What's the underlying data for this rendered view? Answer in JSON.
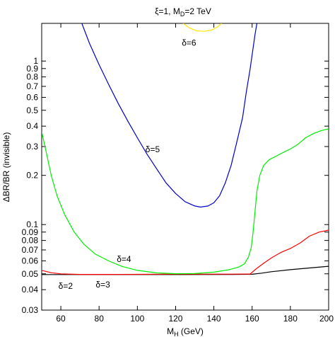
{
  "chart_data": {
    "type": "line",
    "title": "ξ=1, M_D=2 TeV",
    "title_parts": {
      "main": "ξ=1, M",
      "sub": "D",
      "tail": "=2 TeV"
    },
    "xlabel_parts": {
      "main": "M",
      "sub": "H",
      "tail": " (GeV)"
    },
    "ylabel": "ΔBR/BR (invisible)",
    "xlim": [
      50,
      200
    ],
    "ylim": [
      0.03,
      1.7
    ],
    "yscale": "log",
    "grid": false,
    "x_ticks": [
      60,
      80,
      100,
      120,
      140,
      160,
      180,
      200
    ],
    "y_ticks": [
      0.03,
      0.04,
      0.05,
      0.06,
      0.07,
      0.08,
      0.09,
      0.1,
      0.2,
      0.3,
      0.4,
      0.5,
      0.6,
      0.7,
      0.8,
      0.9,
      1
    ],
    "colors": {
      "d2": "#000000",
      "d3": "#ff0000",
      "d4": "#00ee00",
      "d5": "#0000cc",
      "d6": "#ffe600"
    },
    "series": [
      {
        "key": "d2",
        "points": [
          [
            50,
            0.0495
          ],
          [
            60,
            0.0495
          ],
          [
            80,
            0.0495
          ],
          [
            100,
            0.0495
          ],
          [
            120,
            0.0495
          ],
          [
            150,
            0.0496
          ],
          [
            160,
            0.0497
          ],
          [
            165,
            0.0505
          ],
          [
            170,
            0.0515
          ],
          [
            180,
            0.053
          ],
          [
            190,
            0.0543
          ],
          [
            200,
            0.0556
          ]
        ]
      },
      {
        "key": "d3",
        "points": [
          [
            50,
            0.0525
          ],
          [
            55,
            0.0508
          ],
          [
            60,
            0.05
          ],
          [
            70,
            0.0496
          ],
          [
            90,
            0.0496
          ],
          [
            120,
            0.0498
          ],
          [
            150,
            0.0498
          ],
          [
            159,
            0.0499
          ],
          [
            162,
            0.0535
          ],
          [
            166,
            0.058
          ],
          [
            170,
            0.0625
          ],
          [
            175,
            0.0675
          ],
          [
            180,
            0.0715
          ],
          [
            185,
            0.077
          ],
          [
            190,
            0.085
          ],
          [
            195,
            0.09
          ],
          [
            200,
            0.0925
          ]
        ]
      },
      {
        "key": "d4",
        "points": [
          [
            50,
            0.37
          ],
          [
            52,
            0.29
          ],
          [
            55,
            0.2
          ],
          [
            58,
            0.15
          ],
          [
            62,
            0.115
          ],
          [
            67,
            0.09
          ],
          [
            72,
            0.076
          ],
          [
            78,
            0.066
          ],
          [
            85,
            0.06
          ],
          [
            92,
            0.0555
          ],
          [
            100,
            0.0525
          ],
          [
            110,
            0.0507
          ],
          [
            120,
            0.0501
          ],
          [
            130,
            0.0502
          ],
          [
            140,
            0.0512
          ],
          [
            148,
            0.053
          ],
          [
            153,
            0.055
          ],
          [
            156,
            0.0575
          ],
          [
            158,
            0.063
          ],
          [
            159.5,
            0.072
          ],
          [
            160.5,
            0.09
          ],
          [
            161.5,
            0.12
          ],
          [
            162.5,
            0.16
          ],
          [
            164,
            0.2
          ],
          [
            166,
            0.23
          ],
          [
            169,
            0.25
          ],
          [
            172,
            0.26
          ],
          [
            176,
            0.275
          ],
          [
            180,
            0.29
          ],
          [
            184,
            0.31
          ],
          [
            188,
            0.34
          ],
          [
            192,
            0.36
          ],
          [
            196,
            0.375
          ],
          [
            200,
            0.385
          ]
        ]
      },
      {
        "key": "d5",
        "points": [
          [
            71,
            1.7
          ],
          [
            75,
            1.28
          ],
          [
            80,
            0.95
          ],
          [
            85,
            0.72
          ],
          [
            90,
            0.55
          ],
          [
            95,
            0.43
          ],
          [
            100,
            0.34
          ],
          [
            105,
            0.27
          ],
          [
            110,
            0.22
          ],
          [
            115,
            0.18
          ],
          [
            120,
            0.155
          ],
          [
            125,
            0.138
          ],
          [
            130,
            0.13
          ],
          [
            133,
            0.128
          ],
          [
            137,
            0.13
          ],
          [
            140,
            0.136
          ],
          [
            143,
            0.15
          ],
          [
            146,
            0.18
          ],
          [
            149,
            0.23
          ],
          [
            152,
            0.32
          ],
          [
            155,
            0.45
          ],
          [
            157,
            0.65
          ],
          [
            159,
            0.9
          ],
          [
            160.5,
            1.2
          ],
          [
            161.5,
            1.45
          ],
          [
            162.5,
            1.7
          ]
        ]
      },
      {
        "key": "d6",
        "points": [
          [
            124,
            1.7
          ],
          [
            127,
            1.6
          ],
          [
            131,
            1.53
          ],
          [
            135,
            1.52
          ],
          [
            139,
            1.55
          ],
          [
            142,
            1.62
          ],
          [
            144,
            1.7
          ]
        ]
      }
    ],
    "annotations": [
      {
        "text": "δ=2",
        "x": 62.5,
        "y": 0.0405
      },
      {
        "text": "δ=3",
        "x": 82,
        "y": 0.0412
      },
      {
        "text": "δ=4",
        "x": 93,
        "y": 0.0592
      },
      {
        "text": "δ=5",
        "x": 108,
        "y": 0.277
      },
      {
        "text": "δ=6",
        "x": 127,
        "y": 1.24
      }
    ]
  }
}
